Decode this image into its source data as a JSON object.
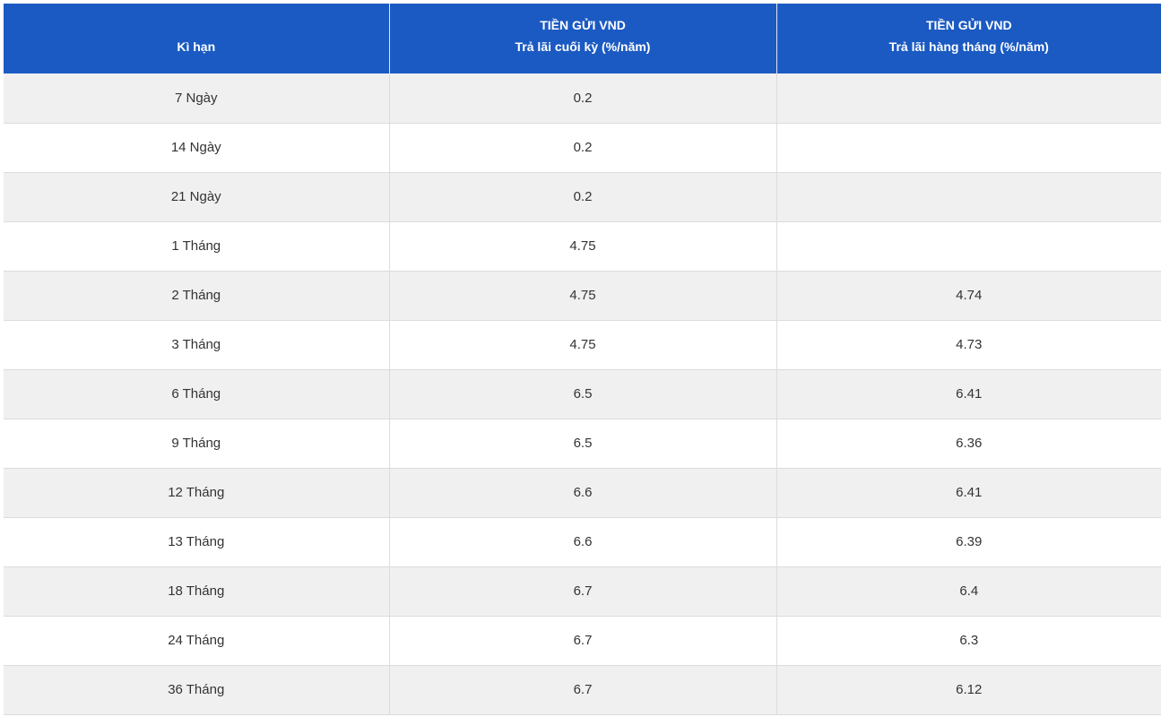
{
  "table": {
    "headers": [
      [
        "Kì hạn"
      ],
      [
        "TIỀN GỬI VND",
        "Trả lãi cuối kỳ (%/năm)"
      ],
      [
        "TIỀN GỬI VND",
        "Trả lãi hàng tháng (%/năm)"
      ]
    ],
    "rows": [
      [
        "7 Ngày",
        0.2,
        null
      ],
      [
        "14 Ngày",
        0.2,
        null
      ],
      [
        "21 Ngày",
        0.2,
        null
      ],
      [
        "1 Tháng",
        4.75,
        null
      ],
      [
        "2 Tháng",
        4.75,
        4.74
      ],
      [
        "3 Tháng",
        4.75,
        4.73
      ],
      [
        "6 Tháng",
        6.5,
        6.41
      ],
      [
        "9 Tháng",
        6.5,
        6.36
      ],
      [
        "12 Tháng",
        6.6,
        6.41
      ],
      [
        "13 Tháng",
        6.6,
        6.39
      ],
      [
        "18 Tháng",
        6.7,
        6.4
      ],
      [
        "24 Tháng",
        6.7,
        6.3
      ],
      [
        "36 Tháng",
        6.7,
        6.12
      ]
    ]
  }
}
